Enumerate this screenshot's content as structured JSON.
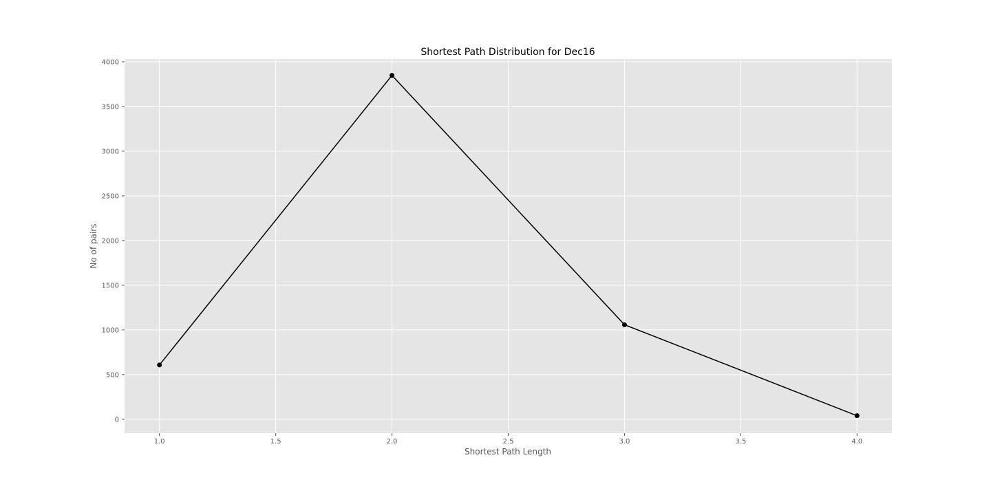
{
  "chart_data": {
    "type": "line",
    "title": "Shortest Path Distribution for Dec16",
    "xlabel": "Shortest Path Length",
    "ylabel": "No of pairs",
    "x": [
      1.0,
      2.0,
      3.0,
      4.0
    ],
    "series": [
      {
        "values": [
          608,
          3848,
          1058,
          40
        ],
        "color": "#000000"
      }
    ],
    "xlim": [
      0.85,
      4.15
    ],
    "ylim": [
      -155,
      4030
    ],
    "xticks": [
      1.0,
      1.5,
      2.0,
      2.5,
      3.0,
      3.5,
      4.0
    ],
    "xtick_labels": [
      "1.0",
      "1.5",
      "2.0",
      "2.5",
      "3.0",
      "3.5",
      "4.0"
    ],
    "yticks": [
      0,
      500,
      1000,
      1500,
      2000,
      2500,
      3000,
      3500,
      4000
    ],
    "ytick_labels": [
      "0",
      "500",
      "1000",
      "1500",
      "2000",
      "2500",
      "3000",
      "3500",
      "4000"
    ],
    "grid": true,
    "background": "#e5e5e5",
    "grid_color": "#ffffff",
    "marker": "circle"
  }
}
